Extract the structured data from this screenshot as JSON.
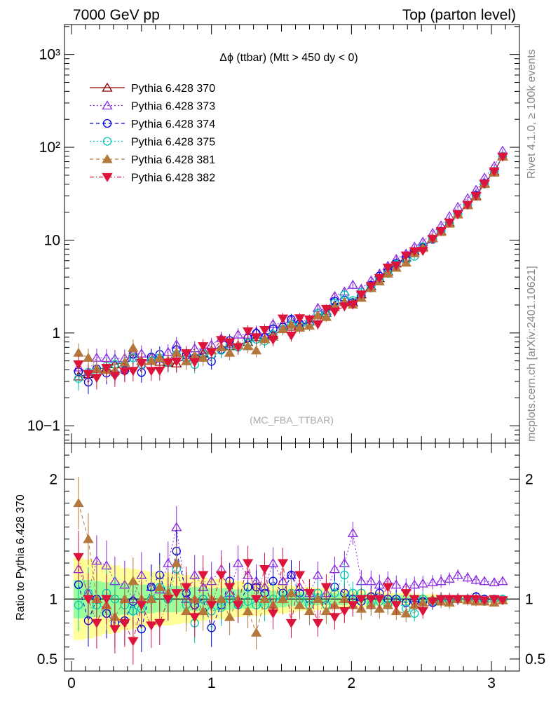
{
  "header": {
    "left": "7000 GeV pp",
    "right": "Top (parton level)"
  },
  "side_labels": {
    "rivet": "Rivet 4.1.0, ≥ 100k events",
    "mcplots": "mcplots.cern.ch [arXiv:2401.10621]"
  },
  "chart_data": {
    "type": "line",
    "title": "Δϕ (ttbar) (Mtt > 450 dy < 0)",
    "watermark": "(MC_FBA_TTBAR)",
    "ylabel_ratio": "Ratio to Pythia 6.428 370",
    "xlim": [
      -0.05,
      3.2
    ],
    "ylim_main": [
      0.065,
      2100
    ],
    "yscale_main": "log",
    "ylim_ratio": [
      0.4,
      2.3
    ],
    "x_ticks": [
      "0",
      "1",
      "2",
      "3"
    ],
    "y_ticks_main": [
      "10−1",
      "1",
      "10",
      "10²",
      "10³"
    ],
    "y_ticks_ratio": [
      "0.5",
      "1",
      "2"
    ],
    "legend_position": "top-left",
    "x": [
      0.05,
      0.12,
      0.18,
      0.25,
      0.31,
      0.38,
      0.44,
      0.5,
      0.57,
      0.63,
      0.69,
      0.75,
      0.82,
      0.88,
      0.94,
      1.0,
      1.07,
      1.13,
      1.19,
      1.26,
      1.32,
      1.38,
      1.44,
      1.51,
      1.57,
      1.63,
      1.7,
      1.76,
      1.82,
      1.88,
      1.95,
      2.01,
      2.07,
      2.14,
      2.2,
      2.26,
      2.32,
      2.39,
      2.45,
      2.51,
      2.58,
      2.64,
      2.7,
      2.76,
      2.83,
      2.89,
      2.95,
      3.02,
      3.08
    ],
    "reference": [
      0.34,
      0.36,
      0.41,
      0.42,
      0.46,
      0.48,
      0.6,
      0.5,
      0.5,
      0.49,
      0.48,
      0.47,
      0.55,
      0.57,
      0.6,
      0.65,
      0.7,
      0.72,
      0.74,
      0.8,
      0.9,
      0.86,
      0.96,
      1.1,
      1.17,
      1.2,
      1.33,
      1.55,
      1.65,
      2.0,
      2.15,
      2.13,
      2.6,
      3.2,
      3.9,
      4.6,
      5.6,
      6.5,
      7.6,
      8.5,
      10.5,
      12.5,
      15.5,
      19.0,
      24.0,
      30.0,
      41.0,
      55.0,
      80.0
    ],
    "band_inner": [
      0.16,
      0.16,
      0.15,
      0.14,
      0.14,
      0.13,
      0.13,
      0.12,
      0.12,
      0.11,
      0.11,
      0.11,
      0.1,
      0.1,
      0.1,
      0.09,
      0.09,
      0.09,
      0.08,
      0.08,
      0.08,
      0.07,
      0.07,
      0.07,
      0.06,
      0.06,
      0.06,
      0.05,
      0.05,
      0.05,
      0.05,
      0.04,
      0.04,
      0.04,
      0.04,
      0.03,
      0.03,
      0.03,
      0.03,
      0.03,
      0.02,
      0.02,
      0.02,
      0.02,
      0.02,
      0.02,
      0.015,
      0.015,
      0.015
    ],
    "band_outer": [
      0.34,
      0.33,
      0.31,
      0.29,
      0.28,
      0.26,
      0.25,
      0.24,
      0.23,
      0.22,
      0.22,
      0.21,
      0.2,
      0.19,
      0.18,
      0.17,
      0.17,
      0.16,
      0.15,
      0.14,
      0.14,
      0.13,
      0.12,
      0.12,
      0.11,
      0.1,
      0.1,
      0.09,
      0.09,
      0.08,
      0.08,
      0.07,
      0.07,
      0.06,
      0.06,
      0.05,
      0.05,
      0.05,
      0.04,
      0.04,
      0.04,
      0.03,
      0.03,
      0.03,
      0.03,
      0.02,
      0.02,
      0.02,
      0.02
    ],
    "series": [
      {
        "name": "Pythia 6.428 370",
        "color": "#8b0000",
        "marker": "triangle-open",
        "dash": "",
        "ratio": [
          1.0,
          1.0,
          1.0,
          1.0,
          1.0,
          1.0,
          1.0,
          1.0,
          1.0,
          1.0,
          1.0,
          1.0,
          1.0,
          1.0,
          1.0,
          1.0,
          1.0,
          1.0,
          1.0,
          1.0,
          1.0,
          1.0,
          1.0,
          1.0,
          1.0,
          1.0,
          1.0,
          1.0,
          1.0,
          1.0,
          1.0,
          1.0,
          1.0,
          1.0,
          1.0,
          1.0,
          1.0,
          1.0,
          1.0,
          1.0,
          1.0,
          1.0,
          1.0,
          1.0,
          1.0,
          1.0,
          1.0,
          1.0,
          1.0
        ]
      },
      {
        "name": "Pythia 6.428 373",
        "color": "#8a2be2",
        "marker": "triangle-open",
        "dash": "2,3",
        "ratio": [
          1.25,
          1.05,
          1.32,
          1.28,
          1.15,
          1.12,
          1.0,
          1.2,
          1.1,
          1.08,
          1.3,
          1.6,
          1.0,
          1.2,
          1.1,
          1.15,
          1.25,
          1.05,
          1.3,
          1.2,
          1.15,
          1.1,
          1.3,
          1.15,
          1.2,
          1.1,
          1.05,
          1.2,
          1.05,
          1.25,
          1.3,
          1.55,
          1.15,
          1.15,
          1.12,
          1.15,
          1.12,
          1.1,
          1.12,
          1.13,
          1.14,
          1.15,
          1.17,
          1.2,
          1.18,
          1.16,
          1.15,
          1.14,
          1.15
        ]
      },
      {
        "name": "Pythia 6.428 374",
        "color": "#0000dd",
        "marker": "circle-open",
        "dash": "5,4",
        "ratio": [
          1.12,
          0.82,
          1.0,
          0.88,
          0.8,
          0.82,
          0.98,
          0.75,
          1.1,
          1.2,
          1.0,
          1.4,
          1.05,
          0.95,
          1.0,
          0.76,
          0.95,
          1.15,
          0.95,
          1.1,
          1.1,
          1.05,
          1.15,
          1.05,
          1.2,
          1.05,
          0.95,
          1.05,
          0.95,
          1.1,
          1.05,
          1.0,
          0.98,
          1.02,
          1.05,
          1.0,
          1.0,
          0.97,
          0.98,
          0.98,
          0.97,
          1.0,
          0.99,
          1.0,
          1.0,
          1.02,
          1.0,
          1.0,
          1.0
        ]
      },
      {
        "name": "Pythia 6.428 375",
        "color": "#00c8b4",
        "marker": "circle-open",
        "dash": "2,3",
        "ratio": [
          0.95,
          1.05,
          0.95,
          1.05,
          1.0,
          0.95,
          0.9,
          0.92,
          1.0,
          1.1,
          1.0,
          1.25,
          0.95,
          0.8,
          1.0,
          0.9,
          0.93,
          1.0,
          0.95,
          0.98,
          0.95,
          0.95,
          1.0,
          1.0,
          1.05,
          1.0,
          0.95,
          1.05,
          0.95,
          1.05,
          1.2,
          1.05,
          1.05,
          0.95,
          0.98,
          0.95,
          0.98,
          0.92,
          0.88,
          1.0,
          0.98,
          1.0,
          0.98,
          1.0,
          1.0,
          1.0,
          0.98,
          1.0,
          1.0
        ]
      },
      {
        "name": "Pythia 6.428 381",
        "color": "#b4783c",
        "marker": "triangle-filled",
        "dash": "5,4",
        "ratio": [
          1.8,
          1.5,
          1.0,
          0.95,
          0.85,
          1.0,
          1.15,
          1.0,
          1.0,
          1.1,
          1.05,
          1.3,
          0.9,
          1.0,
          0.9,
          1.0,
          1.0,
          0.85,
          1.0,
          0.9,
          0.72,
          1.0,
          0.95,
          1.0,
          1.05,
          0.95,
          0.9,
          1.0,
          0.9,
          0.95,
          1.0,
          0.95,
          0.92,
          0.95,
          0.92,
          0.95,
          0.9,
          0.88,
          0.95,
          0.97,
          1.0,
          0.98,
          0.97,
          1.0,
          0.99,
          0.98,
          0.98,
          0.97,
          0.99
        ]
      },
      {
        "name": "Pythia 6.428 382",
        "color": "#dc143c",
        "marker": "triangle-down-filled",
        "dash": "6,3,1,3",
        "ratio": [
          1.35,
          1.0,
          0.8,
          1.0,
          0.75,
          0.8,
          0.65,
          0.95,
          0.78,
          0.8,
          1.0,
          1.05,
          1.1,
          0.85,
          1.2,
          0.95,
          1.2,
          1.1,
          0.95,
          1.3,
          1.0,
          1.25,
          0.88,
          1.3,
          0.8,
          1.2,
          1.05,
          0.8,
          1.1,
          0.85,
          0.9,
          0.95,
          1.0,
          1.0,
          1.0,
          1.1,
          0.95,
          1.05,
          1.0,
          0.9,
          0.98,
          1.0,
          1.0,
          1.0,
          1.0,
          1.0,
          0.99,
          1.0,
          0.99
        ]
      }
    ]
  }
}
